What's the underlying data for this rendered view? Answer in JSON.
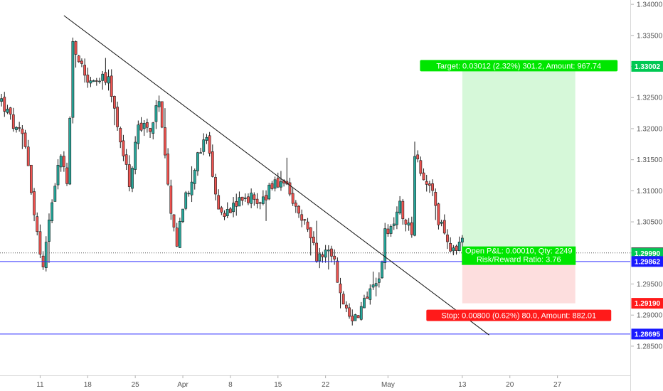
{
  "chart_data": {
    "type": "candlestick",
    "title": "",
    "xlabel": "",
    "ylabel": "",
    "ylim": [
      1.2803,
      1.3407
    ],
    "y_ticks": [
      "1.34000",
      "1.33500",
      "1.33000",
      "1.32500",
      "1.32000",
      "1.31500",
      "1.31000",
      "1.30500",
      "1.30000",
      "1.29500",
      "1.29000",
      "1.28500"
    ],
    "x_ticks": [
      {
        "label": "11",
        "bar": 13
      },
      {
        "label": "18",
        "bar": 29
      },
      {
        "label": "25",
        "bar": 45
      },
      {
        "label": "Apr",
        "bar": 61
      },
      {
        "label": "8",
        "bar": 77
      },
      {
        "label": "15",
        "bar": 93
      },
      {
        "label": "22",
        "bar": 109
      },
      {
        "label": "May",
        "bar": 130
      },
      {
        "label": "13",
        "bar": 155
      },
      {
        "label": "20",
        "bar": 171
      },
      {
        "label": "27",
        "bar": 187
      }
    ],
    "bar_count": 212,
    "up_color": "#26a69a",
    "down_color": "#ef5350",
    "price_path": [
      [
        0,
        1.3245
      ],
      [
        5,
        1.3195
      ],
      [
        8,
        1.318
      ],
      [
        12,
        1.303
      ],
      [
        14,
        1.2975
      ],
      [
        17,
        1.309
      ],
      [
        20,
        1.316
      ],
      [
        22,
        1.311
      ],
      [
        24,
        1.333
      ],
      [
        27,
        1.33
      ],
      [
        30,
        1.327
      ],
      [
        33,
        1.328
      ],
      [
        36,
        1.3275
      ],
      [
        40,
        1.3185
      ],
      [
        43,
        1.311
      ],
      [
        46,
        1.321
      ],
      [
        50,
        1.32
      ],
      [
        53,
        1.324
      ],
      [
        56,
        1.31
      ],
      [
        59,
        1.302
      ],
      [
        62,
        1.309
      ],
      [
        65,
        1.314
      ],
      [
        69,
        1.3185
      ],
      [
        72,
        1.309
      ],
      [
        75,
        1.306
      ],
      [
        78,
        1.308
      ],
      [
        81,
        1.3095
      ],
      [
        85,
        1.3085
      ],
      [
        89,
        1.309
      ],
      [
        92,
        1.3115
      ],
      [
        96,
        1.31
      ],
      [
        99,
        1.3065
      ],
      [
        103,
        1.304
      ],
      [
        106,
        1.299
      ],
      [
        109,
        1.3
      ],
      [
        112,
        1.2985
      ],
      [
        115,
        1.292
      ],
      [
        118,
        1.2895
      ],
      [
        121,
        1.291
      ],
      [
        124,
        1.2935
      ],
      [
        127,
        1.296
      ],
      [
        129,
        1.303
      ],
      [
        131,
        1.3045
      ],
      [
        134,
        1.308
      ],
      [
        136,
        1.305
      ],
      [
        138,
        1.304
      ],
      [
        139,
        1.316
      ],
      [
        141,
        1.3135
      ],
      [
        143,
        1.311
      ],
      [
        145,
        1.309
      ],
      [
        147,
        1.305
      ],
      [
        149,
        1.303
      ],
      [
        151,
        1.3
      ],
      [
        153,
        1.301
      ],
      [
        155,
        1.302
      ]
    ],
    "horizontal_lines": [
      {
        "price": 1.29862,
        "color": "#3030ff",
        "style": "solid"
      },
      {
        "price": 1.28695,
        "color": "#3030ff",
        "style": "solid"
      },
      {
        "price": 1.3,
        "color": "#555555",
        "style": "dotted"
      }
    ],
    "trendline": {
      "from": [
        21,
        1.3382
      ],
      "to": [
        164,
        1.2868
      ],
      "color": "#111111"
    },
    "position": {
      "from_bar": 155,
      "to_bar": 193,
      "entry": 1.2999,
      "target": 1.33002,
      "stop": 1.2919,
      "target_label": "Target: 0.03012 (2.32%) 301.2, Amount: 967.74",
      "stop_label": "Stop: 0.00800 (0.62%) 80.0, Amount: 882.01",
      "pnl_label": "Open P&L: 0.00010, Qty: 2249",
      "rr_label": "Risk/Reward Ratio: 3.76"
    },
    "price_tags": [
      {
        "value": "1.33002",
        "price": 1.33002,
        "bg": "#00c853",
        "fg": "#ffffff"
      },
      {
        "value": "1.30000",
        "price": 1.3,
        "bg": "#ffffff",
        "fg": "#000000"
      },
      {
        "value": "1.29990",
        "price": 1.2999,
        "bg": "#00c853",
        "fg": "#ffffff"
      },
      {
        "value": "1.29862",
        "price": 1.29862,
        "bg": "#1a1aff",
        "fg": "#ffffff"
      },
      {
        "value": "1.29190",
        "price": 1.2919,
        "bg": "#ff1a1a",
        "fg": "#ffffff"
      },
      {
        "value": "1.28695",
        "price": 1.28695,
        "bg": "#1a1aff",
        "fg": "#ffffff"
      }
    ]
  }
}
